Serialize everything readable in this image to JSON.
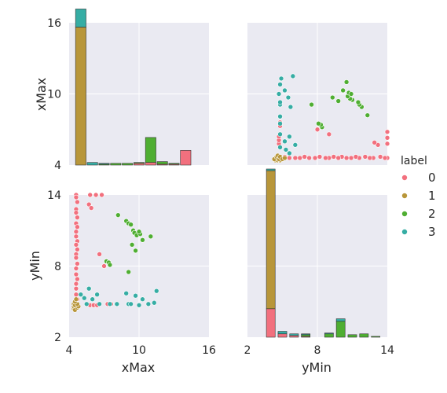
{
  "chart_data": {
    "type": "scatter",
    "kind": "pairplot",
    "variables": [
      "xMax",
      "yMin"
    ],
    "legend": {
      "title": "label",
      "placement": "right",
      "entries": [
        "0",
        "1",
        "2",
        "3"
      ]
    },
    "colors": {
      "0": "#f2707e",
      "1": "#b8963a",
      "2": "#4fae32",
      "3": "#36ada4",
      "panel_bg": "#eaeaf2",
      "grid": "#ffffff"
    },
    "axes": {
      "xMax": {
        "range": [
          4,
          16
        ],
        "ticks": [
          "4",
          "10",
          "16"
        ],
        "tick_values": [
          4,
          10,
          16
        ]
      },
      "yMin": {
        "range": [
          2,
          14
        ],
        "ticks": [
          "2",
          "8",
          "14"
        ],
        "tick_values": [
          2,
          8,
          14
        ]
      }
    },
    "grid": true,
    "hist_xMax": {
      "bins": [
        5,
        6,
        7,
        8,
        9,
        10,
        11,
        12,
        13,
        14,
        15
      ],
      "counts": {
        "0": [
          0,
          0,
          0,
          0,
          0,
          0.2,
          0.3,
          0.1,
          0.1,
          1.7,
          0
        ],
        "1": [
          16.0,
          0,
          0,
          0,
          0,
          0,
          0,
          0,
          0,
          0,
          0
        ],
        "2": [
          0,
          0,
          0.1,
          0.2,
          0.2,
          0.1,
          2.9,
          0.3,
          0.1,
          0,
          0
        ],
        "3": [
          2.1,
          0.3,
          0.1,
          0,
          0,
          0,
          0,
          0,
          0,
          0,
          0
        ]
      }
    },
    "hist_yMin": {
      "bins": [
        3,
        4,
        5,
        6,
        7,
        8,
        9,
        10,
        11,
        12,
        13
      ],
      "counts": {
        "0": [
          0,
          3.4,
          0.4,
          0.2,
          0.1,
          0,
          0,
          0,
          0,
          0,
          0
        ],
        "1": [
          0,
          16.5,
          0,
          0,
          0,
          0,
          0,
          0,
          0,
          0,
          0
        ],
        "2": [
          0,
          0,
          0,
          0,
          0.2,
          0,
          0.4,
          1.9,
          0.3,
          0.4,
          0.1
        ],
        "3": [
          0,
          0.2,
          0.3,
          0.2,
          0.1,
          0,
          0.1,
          0.3,
          0,
          0,
          0
        ]
      }
    },
    "scatter_points": {
      "0": [
        [
          4.6,
          14.0
        ],
        [
          4.6,
          13.8
        ],
        [
          4.7,
          13.4
        ],
        [
          4.6,
          12.8
        ],
        [
          4.6,
          12.5
        ],
        [
          4.7,
          12.1
        ],
        [
          4.6,
          11.6
        ],
        [
          4.7,
          11.3
        ],
        [
          4.6,
          10.9
        ],
        [
          4.6,
          10.5
        ],
        [
          4.7,
          10.1
        ],
        [
          4.6,
          9.8
        ],
        [
          4.7,
          9.4
        ],
        [
          4.6,
          9.0
        ],
        [
          4.6,
          8.7
        ],
        [
          4.7,
          8.2
        ],
        [
          4.6,
          7.8
        ],
        [
          4.6,
          7.3
        ],
        [
          4.7,
          6.9
        ],
        [
          4.6,
          6.5
        ],
        [
          4.6,
          6.1
        ],
        [
          4.6,
          5.6
        ],
        [
          4.7,
          5.2
        ],
        [
          4.6,
          4.8
        ],
        [
          5.8,
          14.0
        ],
        [
          6.3,
          14.0
        ],
        [
          6.8,
          14.0
        ],
        [
          5.7,
          13.2
        ],
        [
          5.9,
          12.9
        ],
        [
          6.6,
          9.0
        ],
        [
          7.0,
          8.0
        ],
        [
          7.6,
          4.8
        ],
        [
          7.3,
          4.8
        ],
        [
          5.8,
          4.7
        ],
        [
          6.1,
          4.7
        ],
        [
          6.4,
          4.7
        ]
      ],
      "1": [
        [
          4.4,
          4.4
        ],
        [
          4.5,
          4.5
        ],
        [
          4.6,
          4.4
        ],
        [
          4.4,
          4.6
        ],
        [
          4.6,
          4.6
        ],
        [
          4.5,
          4.3
        ],
        [
          4.7,
          4.5
        ],
        [
          4.4,
          4.8
        ],
        [
          4.6,
          4.9
        ],
        [
          4.5,
          4.7
        ],
        [
          4.8,
          4.6
        ],
        [
          4.7,
          4.8
        ],
        [
          4.5,
          5.0
        ],
        [
          4.6,
          5.2
        ]
      ],
      "2": [
        [
          8.2,
          12.3
        ],
        [
          8.9,
          11.8
        ],
        [
          9.1,
          11.6
        ],
        [
          9.3,
          11.5
        ],
        [
          9.5,
          11.0
        ],
        [
          9.6,
          10.8
        ],
        [
          9.8,
          10.6
        ],
        [
          10.1,
          10.7
        ],
        [
          10.0,
          10.9
        ],
        [
          10.3,
          10.2
        ],
        [
          11.0,
          10.5
        ],
        [
          9.4,
          9.8
        ],
        [
          9.7,
          9.3
        ],
        [
          9.1,
          7.5
        ],
        [
          7.2,
          8.4
        ],
        [
          7.4,
          8.3
        ],
        [
          7.5,
          8.1
        ]
      ],
      "3": [
        [
          5.0,
          5.6
        ],
        [
          5.3,
          5.3
        ],
        [
          6.0,
          5.2
        ],
        [
          6.4,
          5.6
        ],
        [
          6.6,
          4.8
        ],
        [
          5.5,
          4.8
        ],
        [
          9.1,
          4.8
        ],
        [
          9.3,
          4.8
        ],
        [
          9.7,
          5.5
        ],
        [
          10.3,
          5.2
        ],
        [
          10.8,
          4.8
        ],
        [
          11.3,
          4.9
        ],
        [
          11.5,
          5.9
        ],
        [
          5.7,
          6.1
        ],
        [
          7.5,
          4.8
        ],
        [
          8.1,
          4.8
        ],
        [
          8.9,
          5.7
        ],
        [
          10.0,
          4.7
        ]
      ]
    },
    "x_labels": [
      "xMax",
      "yMin"
    ],
    "y_labels": [
      "xMax",
      "yMin"
    ]
  }
}
